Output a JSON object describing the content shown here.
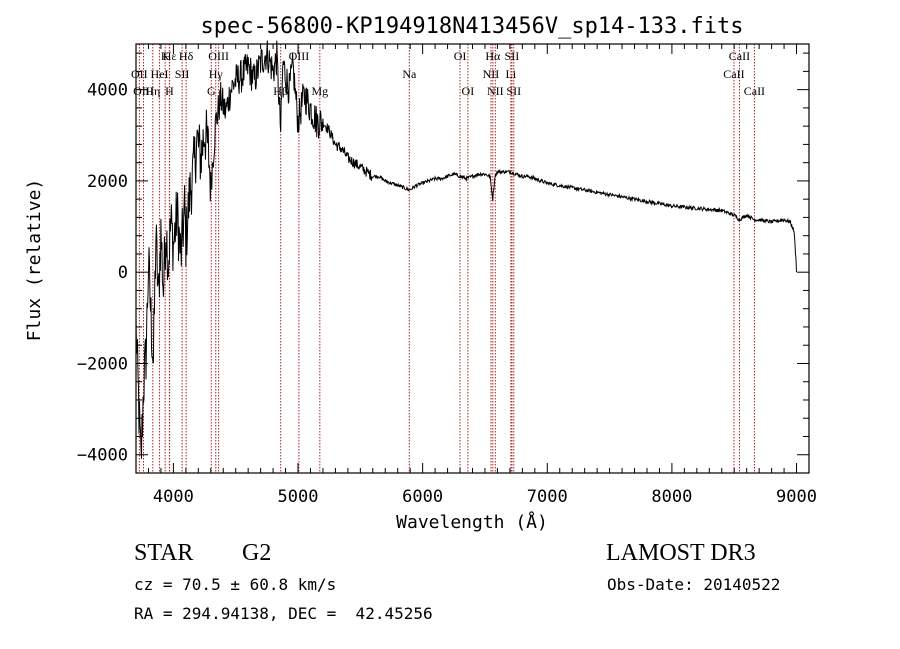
{
  "chart_data": {
    "type": "line",
    "title": "spec-56800-KP194918N413456V_sp14-133.fits",
    "xlabel": "Wavelength (Å)",
    "ylabel": "Flux (relative)",
    "xlim": [
      3700,
      9100
    ],
    "ylim": [
      -4400,
      5000
    ],
    "x_ticks": [
      4000,
      5000,
      6000,
      7000,
      8000,
      9000
    ],
    "x_tick_labels": [
      "4000",
      "5000",
      "6000",
      "7000",
      "8000",
      "9000"
    ],
    "y_ticks": [
      -4000,
      -2000,
      0,
      2000,
      4000
    ],
    "y_tick_labels": [
      "−4000",
      "−2000",
      "0",
      "2000",
      "4000"
    ],
    "line_color": "#000000",
    "marker_color": "#b22222",
    "series": [
      {
        "name": "flux",
        "x": [
          3700,
          3720,
          3740,
          3760,
          3780,
          3800,
          3820,
          3840,
          3860,
          3880,
          3900,
          3920,
          3940,
          3960,
          3980,
          4000,
          4030,
          4060,
          4090,
          4100,
          4130,
          4160,
          4190,
          4220,
          4250,
          4280,
          4300,
          4340,
          4380,
          4420,
          4460,
          4500,
          4550,
          4600,
          4650,
          4700,
          4750,
          4800,
          4830,
          4861,
          4880,
          4900,
          4930,
          4960,
          5000,
          5050,
          5100,
          5150,
          5200,
          5250,
          5300,
          5350,
          5400,
          5450,
          5500,
          5550,
          5600,
          5650,
          5700,
          5750,
          5800,
          5850,
          5893,
          5950,
          6000,
          6050,
          6100,
          6150,
          6200,
          6250,
          6300,
          6350,
          6400,
          6450,
          6500,
          6540,
          6563,
          6580,
          6600,
          6650,
          6700,
          6750,
          6800,
          6850,
          6900,
          7000,
          7200,
          7400,
          7600,
          7800,
          8000,
          8200,
          8400,
          8500,
          8542,
          8600,
          8662,
          8700,
          8800,
          8900,
          8950,
          8980,
          8995,
          9000
        ],
        "y": [
          -1200,
          -2800,
          -4200,
          -2500,
          -1800,
          200,
          -1000,
          -2000,
          800,
          -600,
          900,
          -400,
          1000,
          200,
          1100,
          600,
          1300,
          300,
          1400,
          700,
          1700,
          2200,
          2900,
          2500,
          3100,
          2700,
          1900,
          3300,
          3800,
          3500,
          4000,
          4200,
          4300,
          4500,
          4200,
          4600,
          4800,
          4400,
          4700,
          3100,
          4600,
          4300,
          4000,
          4500,
          3300,
          3900,
          3600,
          3300,
          3300,
          3100,
          2800,
          2700,
          2500,
          2400,
          2300,
          2200,
          2100,
          2100,
          2000,
          1950,
          1900,
          1850,
          1800,
          1900,
          1950,
          2000,
          2050,
          2050,
          2100,
          2150,
          2100,
          2050,
          2100,
          2150,
          2150,
          2100,
          1600,
          2100,
          2200,
          2200,
          2200,
          2150,
          2100,
          2100,
          2050,
          1950,
          1850,
          1750,
          1650,
          1550,
          1450,
          1400,
          1350,
          1250,
          1150,
          1250,
          1150,
          1150,
          1100,
          1150,
          1100,
          900,
          300,
          0
        ]
      }
    ],
    "spectral_lines": [
      {
        "label": "Hε",
        "x": 3970,
        "row": 1
      },
      {
        "label": "K",
        "x": 3934,
        "row": 1
      },
      {
        "label": "Hδ",
        "x": 4102,
        "row": 1
      },
      {
        "label": "OII",
        "x": 3727,
        "row": 2
      },
      {
        "label": "HeI",
        "x": 3889,
        "row": 2
      },
      {
        "label": "SII",
        "x": 4070,
        "row": 2
      },
      {
        "label": "OIII",
        "x": 3760,
        "row": 3
      },
      {
        "label": "Hη",
        "x": 3835,
        "row": 3
      },
      {
        "label": "H",
        "x": 3968,
        "row": 3
      },
      {
        "label": "OIII",
        "x": 4363,
        "row": 1
      },
      {
        "label": "Hγ",
        "x": 4340,
        "row": 2
      },
      {
        "label": "G",
        "x": 4304,
        "row": 3
      },
      {
        "label": "OIII",
        "x": 5007,
        "row": 1
      },
      {
        "label": "Hβ",
        "x": 4861,
        "row": 3
      },
      {
        "label": "Mg",
        "x": 5175,
        "row": 3
      },
      {
        "label": "Na",
        "x": 5893,
        "row": 2
      },
      {
        "label": "OI",
        "x": 6300,
        "row": 1
      },
      {
        "label": "OI",
        "x": 6363,
        "row": 3
      },
      {
        "label": "Hα",
        "x": 6563,
        "row": 1
      },
      {
        "label": "SII",
        "x": 6716,
        "row": 1
      },
      {
        "label": "NII",
        "x": 6548,
        "row": 2
      },
      {
        "label": "Li",
        "x": 6708,
        "row": 2
      },
      {
        "label": "NII",
        "x": 6583,
        "row": 3
      },
      {
        "label": "SII",
        "x": 6731,
        "row": 3
      },
      {
        "label": "CaII",
        "x": 8542,
        "row": 1
      },
      {
        "label": "CaII",
        "x": 8498,
        "row": 2
      },
      {
        "label": "CaII",
        "x": 8662,
        "row": 3
      }
    ]
  },
  "info": {
    "object_class": "STAR",
    "subclass": "G2",
    "survey": "LAMOST DR3",
    "redshift_line": "cz = 70.5 ± 60.8 km/s",
    "obs_date_line": "Obs-Date: 20140522",
    "coords_line": "RA = 294.94138, DEC =  42.45256"
  }
}
